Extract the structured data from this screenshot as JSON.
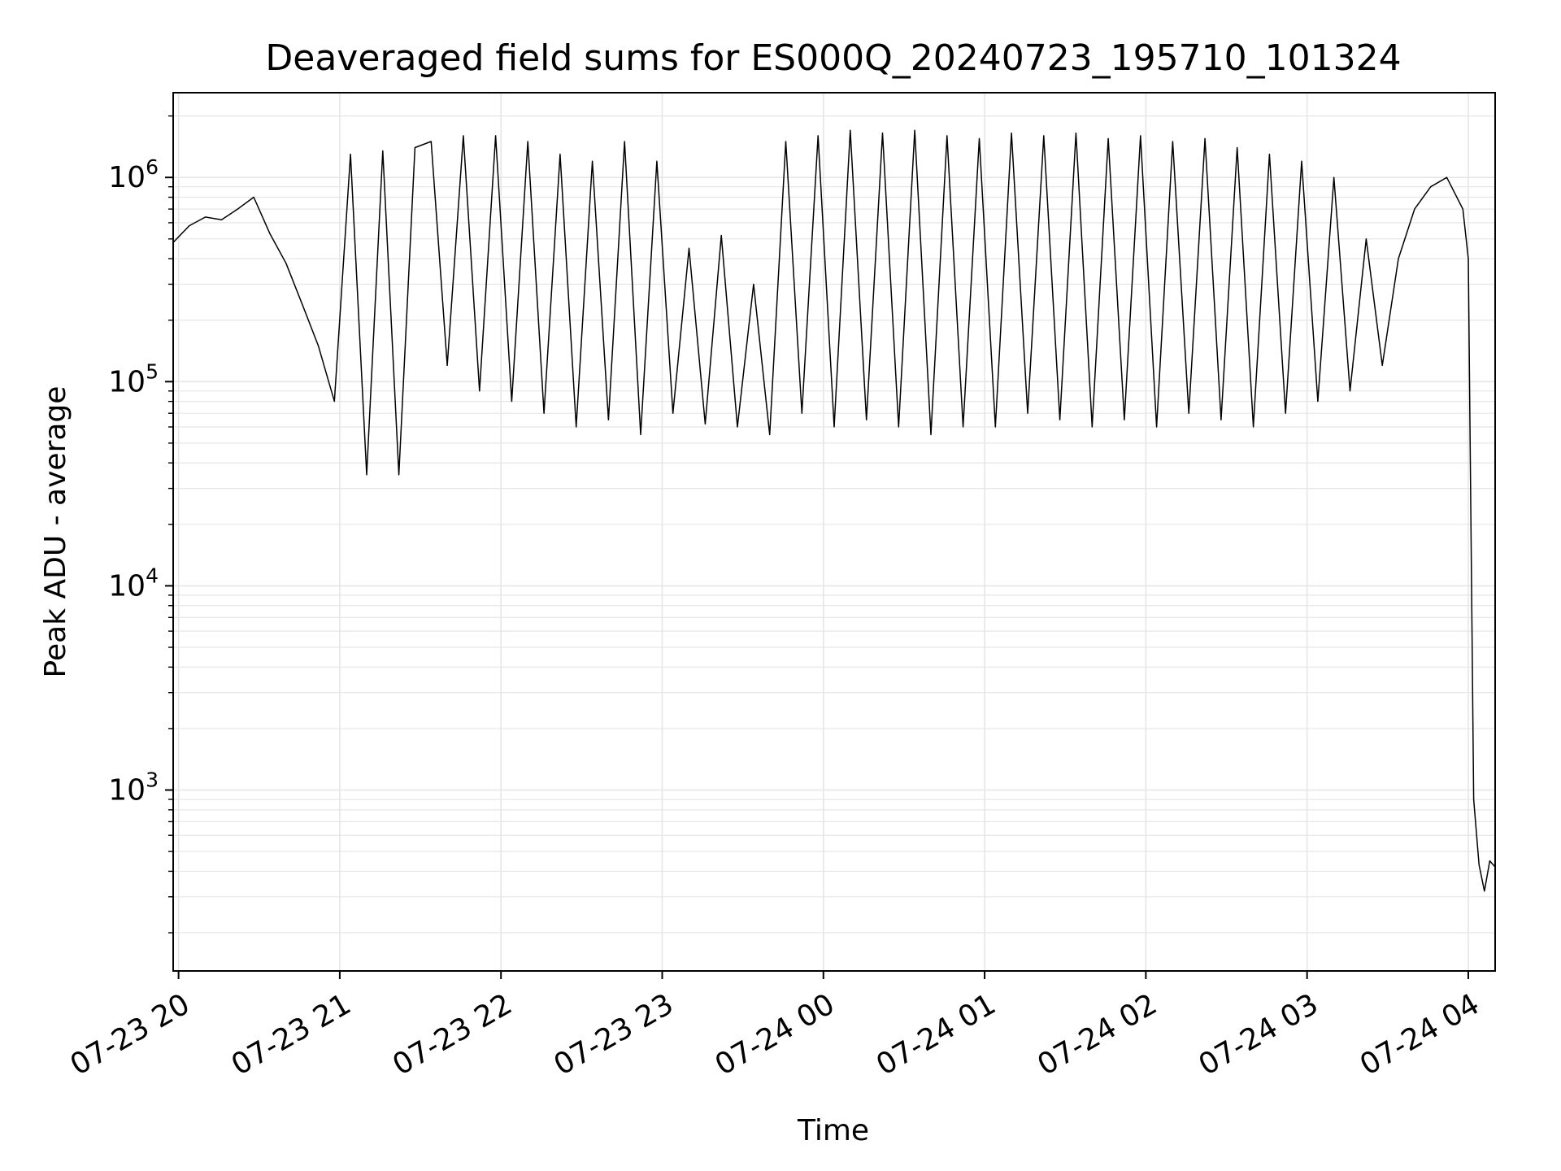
{
  "chart_data": {
    "type": "line",
    "title": "Deaveraged field sums for ES000Q_20240723_195710_101324",
    "xlabel": "Time",
    "ylabel": "Peak ADU - average",
    "yscale": "log",
    "ylim": [
      130,
      2600000
    ],
    "xlim": [
      "2024-07-23 19:58:00",
      "2024-07-24 04:10:00"
    ],
    "grid": true,
    "legend": "none",
    "line_color": "#000000",
    "grid_color": "#e6e6e6",
    "x_ticks": [
      {
        "value": "2024-07-23 20:00:00",
        "label": "07-23 20"
      },
      {
        "value": "2024-07-23 21:00:00",
        "label": "07-23 21"
      },
      {
        "value": "2024-07-23 22:00:00",
        "label": "07-23 22"
      },
      {
        "value": "2024-07-23 23:00:00",
        "label": "07-23 23"
      },
      {
        "value": "2024-07-24 00:00:00",
        "label": "07-24 00"
      },
      {
        "value": "2024-07-24 01:00:00",
        "label": "07-24 01"
      },
      {
        "value": "2024-07-24 02:00:00",
        "label": "07-24 02"
      },
      {
        "value": "2024-07-24 03:00:00",
        "label": "07-24 03"
      },
      {
        "value": "2024-07-24 04:00:00",
        "label": "07-24 04"
      }
    ],
    "y_ticks": [
      {
        "value": 1000,
        "base": "10",
        "exp": "3"
      },
      {
        "value": 10000,
        "base": "10",
        "exp": "4"
      },
      {
        "value": 100000,
        "base": "10",
        "exp": "5"
      },
      {
        "value": 1000000,
        "base": "10",
        "exp": "6"
      }
    ],
    "series": [
      {
        "x": [
          "2024-07-23 19:58:00",
          "2024-07-23 20:04:00",
          "2024-07-23 20:10:00",
          "2024-07-23 20:16:00",
          "2024-07-23 20:22:00",
          "2024-07-23 20:28:00",
          "2024-07-23 20:34:00",
          "2024-07-23 20:40:00",
          "2024-07-23 20:46:00",
          "2024-07-23 20:52:00",
          "2024-07-23 20:58:00",
          "2024-07-23 21:04:00",
          "2024-07-23 21:10:00",
          "2024-07-23 21:16:00",
          "2024-07-23 21:22:00",
          "2024-07-23 21:28:00",
          "2024-07-23 21:34:00",
          "2024-07-23 21:40:00",
          "2024-07-23 21:46:00",
          "2024-07-23 21:52:00",
          "2024-07-23 21:58:00",
          "2024-07-23 22:04:00",
          "2024-07-23 22:10:00",
          "2024-07-23 22:16:00",
          "2024-07-23 22:22:00",
          "2024-07-23 22:28:00",
          "2024-07-23 22:34:00",
          "2024-07-23 22:40:00",
          "2024-07-23 22:46:00",
          "2024-07-23 22:52:00",
          "2024-07-23 22:58:00",
          "2024-07-23 23:04:00",
          "2024-07-23 23:10:00",
          "2024-07-23 23:16:00",
          "2024-07-23 23:22:00",
          "2024-07-23 23:28:00",
          "2024-07-23 23:34:00",
          "2024-07-23 23:40:00",
          "2024-07-23 23:46:00",
          "2024-07-23 23:52:00",
          "2024-07-23 23:58:00",
          "2024-07-24 00:04:00",
          "2024-07-24 00:10:00",
          "2024-07-24 00:16:00",
          "2024-07-24 00:22:00",
          "2024-07-24 00:28:00",
          "2024-07-24 00:34:00",
          "2024-07-24 00:40:00",
          "2024-07-24 00:46:00",
          "2024-07-24 00:52:00",
          "2024-07-24 00:58:00",
          "2024-07-24 01:04:00",
          "2024-07-24 01:10:00",
          "2024-07-24 01:16:00",
          "2024-07-24 01:22:00",
          "2024-07-24 01:28:00",
          "2024-07-24 01:34:00",
          "2024-07-24 01:40:00",
          "2024-07-24 01:46:00",
          "2024-07-24 01:52:00",
          "2024-07-24 01:58:00",
          "2024-07-24 02:04:00",
          "2024-07-24 02:10:00",
          "2024-07-24 02:16:00",
          "2024-07-24 02:22:00",
          "2024-07-24 02:28:00",
          "2024-07-24 02:34:00",
          "2024-07-24 02:40:00",
          "2024-07-24 02:46:00",
          "2024-07-24 02:52:00",
          "2024-07-24 02:58:00",
          "2024-07-24 03:04:00",
          "2024-07-24 03:10:00",
          "2024-07-24 03:16:00",
          "2024-07-24 03:22:00",
          "2024-07-24 03:28:00",
          "2024-07-24 03:34:00",
          "2024-07-24 03:40:00",
          "2024-07-24 03:46:00",
          "2024-07-24 03:52:00",
          "2024-07-24 03:58:00",
          "2024-07-24 04:00:00",
          "2024-07-24 04:02:00",
          "2024-07-24 04:04:00",
          "2024-07-24 04:06:00",
          "2024-07-24 04:08:00",
          "2024-07-24 04:10:00"
        ],
        "y": [
          480000,
          580000,
          640000,
          620000,
          700000,
          800000,
          530000,
          380000,
          240000,
          150000,
          80000,
          1300000,
          35000,
          1350000,
          35000,
          1400000,
          1500000,
          120000,
          1600000,
          90000,
          1600000,
          80000,
          1500000,
          70000,
          1300000,
          60000,
          1200000,
          65000,
          1500000,
          55000,
          1200000,
          70000,
          450000,
          62000,
          520000,
          60000,
          300000,
          55000,
          1500000,
          70000,
          1600000,
          60000,
          1700000,
          65000,
          1650000,
          60000,
          1700000,
          55000,
          1600000,
          60000,
          1550000,
          60000,
          1650000,
          70000,
          1600000,
          65000,
          1650000,
          60000,
          1550000,
          65000,
          1600000,
          60000,
          1500000,
          70000,
          1550000,
          65000,
          1400000,
          60000,
          1300000,
          70000,
          1200000,
          80000,
          1000000,
          90000,
          500000,
          120000,
          400000,
          700000,
          900000,
          1000000,
          700000,
          400000,
          900,
          430,
          320,
          450,
          420
        ]
      }
    ]
  }
}
